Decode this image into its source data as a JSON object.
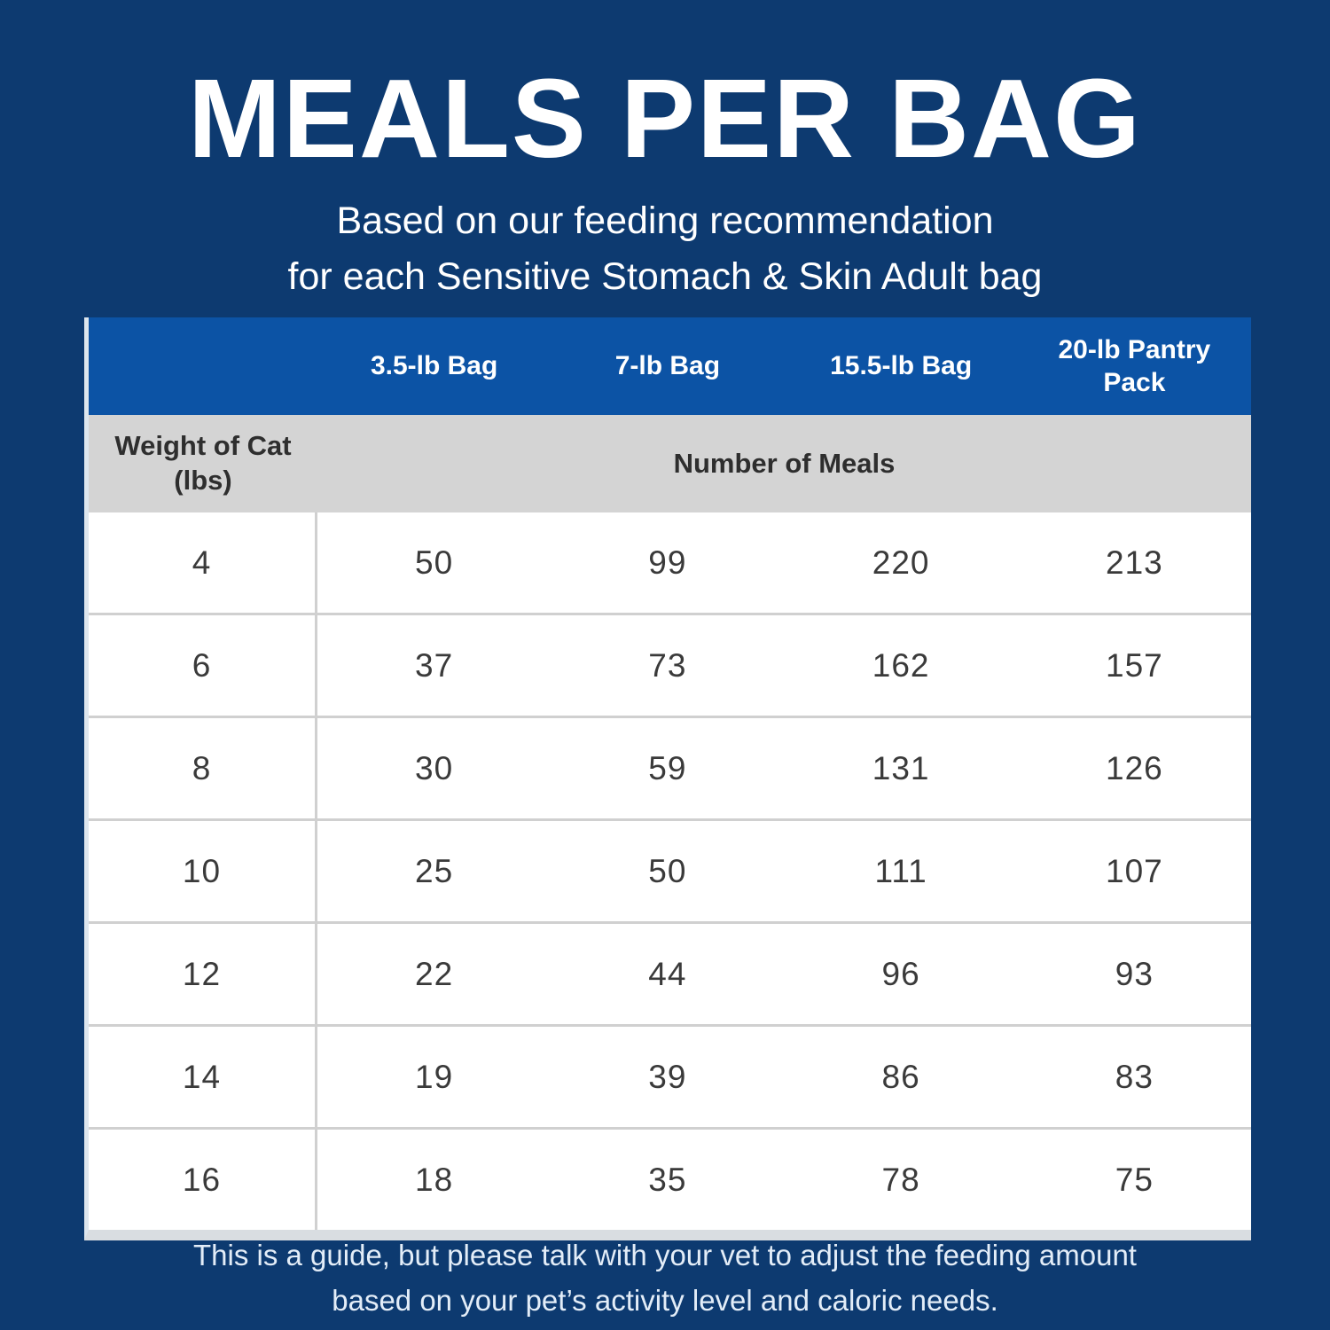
{
  "header": {
    "title": "MEALS PER BAG",
    "subtitle_line1": "Based on our feeding recommendation",
    "subtitle_line2": "for each Sensitive Stomach & Skin Adult bag"
  },
  "table": {
    "bag_headers": [
      "3.5-lb Bag",
      "7-lb Bag",
      "15.5-lb Bag",
      "20-lb Pantry Pack"
    ],
    "weight_header_line1": "Weight of Cat",
    "weight_header_line2": "(lbs)",
    "meals_header": "Number of Meals"
  },
  "footer": {
    "line1": "This is a guide, but please talk with your vet to adjust the feeding amount",
    "line2": "based on your pet’s activity level and caloric needs."
  },
  "colors": {
    "background_navy": "#0d3a70",
    "header_band_blue": "#0c53a5",
    "subheader_gray": "#d4d4d4",
    "row_white": "#ffffff",
    "divider_gray": "#d0d0d0",
    "cell_text": "#3a3a3a",
    "footer_text": "#e3edf8"
  },
  "chart_data": {
    "type": "table",
    "title": "MEALS PER BAG",
    "subtitle": "Based on our feeding recommendation for each Sensitive Stomach & Skin Adult bag",
    "columns": [
      "Weight of Cat (lbs)",
      "3.5-lb Bag",
      "7-lb Bag",
      "15.5-lb Bag",
      "20-lb Pantry Pack"
    ],
    "value_unit": "Number of Meals",
    "rows": [
      [
        4,
        50,
        99,
        220,
        213
      ],
      [
        6,
        37,
        73,
        162,
        157
      ],
      [
        8,
        30,
        59,
        131,
        126
      ],
      [
        10,
        25,
        50,
        111,
        107
      ],
      [
        12,
        22,
        44,
        96,
        93
      ],
      [
        14,
        19,
        39,
        86,
        83
      ],
      [
        16,
        18,
        35,
        78,
        75
      ]
    ],
    "note": "This is a guide, but please talk with your vet to adjust the feeding amount based on your pet’s activity level and caloric needs."
  }
}
